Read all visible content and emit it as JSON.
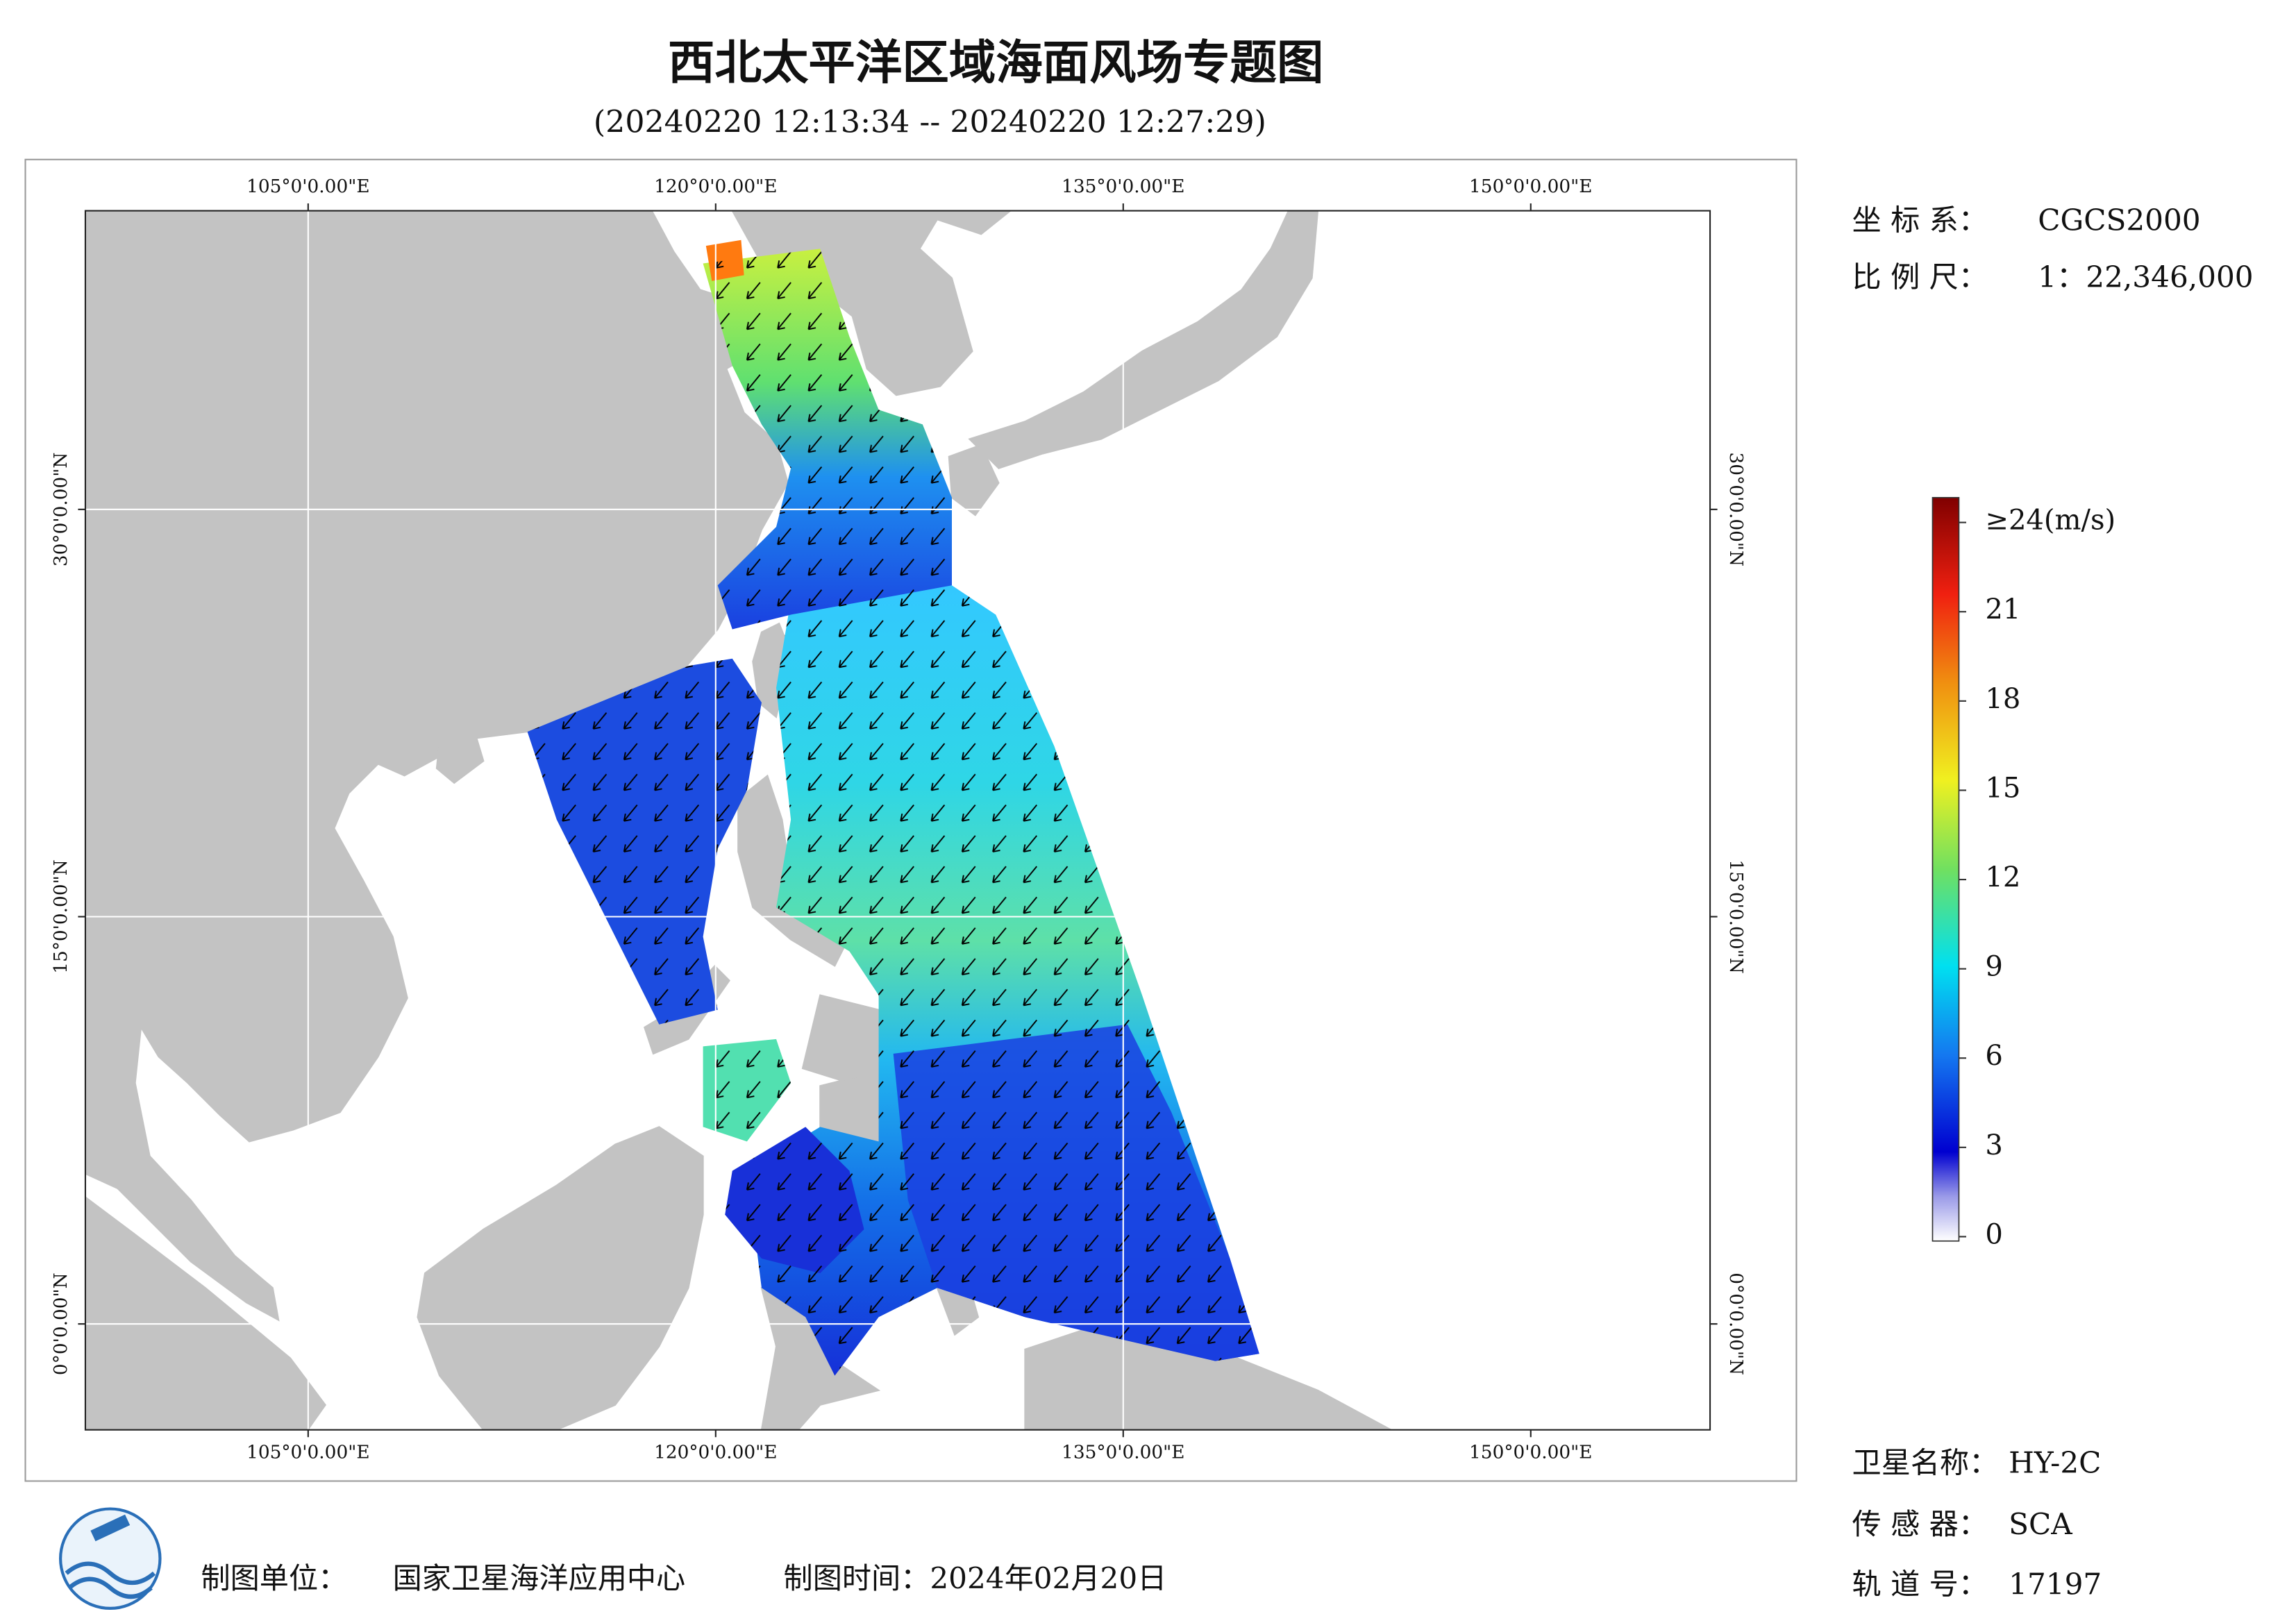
{
  "header": {
    "title": "西北太平洋区域海面风场专题图",
    "subtitle": "(20240220 12:13:34 -- 20240220 12:27:29)"
  },
  "map": {
    "xlim": [
      96.8,
      156.6
    ],
    "ylim": [
      -3.9,
      41
    ],
    "xticks": [
      {
        "value": 105,
        "label": "105°0'0.00\"E"
      },
      {
        "value": 120,
        "label": "120°0'0.00\"E"
      },
      {
        "value": 135,
        "label": "135°0'0.00\"E"
      },
      {
        "value": 150,
        "label": "150°0'0.00\"E"
      }
    ],
    "yticks": [
      {
        "value": 0,
        "label": "0°0'0.00\"N"
      },
      {
        "value": 15,
        "label": "15°0'0.00\"N"
      },
      {
        "value": 30,
        "label": "30°0'0.00\"N"
      }
    ]
  },
  "colorbar": {
    "lim": [
      0,
      24
    ],
    "ticks": [
      0,
      3,
      6,
      9,
      12,
      15,
      18,
      21,
      {
        "value": 24,
        "label": "≥24(m/s)"
      }
    ]
  },
  "info": {
    "crs_label": "坐 标 系：",
    "crs": "CGCS2000",
    "scale_label": "比 例 尺：",
    "scale": "1：22,346,000",
    "satellite_label": "卫星名称：",
    "satellite": "HY-2C",
    "sensor_label": "传 感 器：",
    "sensor": "SCA",
    "orbit_label": "轨 道 号：",
    "orbit": "17197"
  },
  "footer": {
    "unit_label": "制图单位：",
    "unit": "国家卫星海洋应用中心",
    "time": "制图时间：2024年02月20日"
  }
}
